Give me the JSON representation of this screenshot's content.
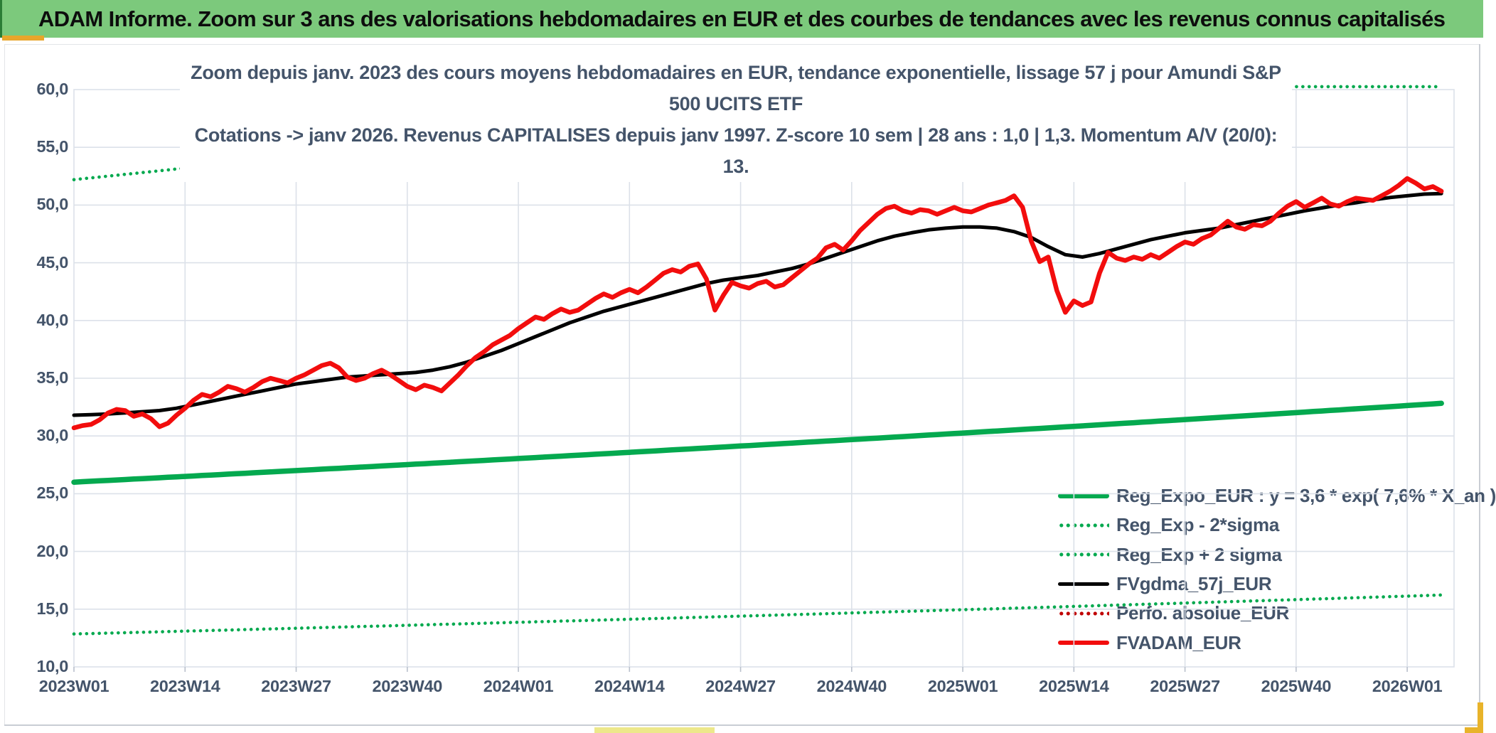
{
  "banner": {
    "title": "ADAM Informe. Zoom sur 3 ans des valorisations hebdomadaires en EUR et des courbes de tendances avec les revenus connus capitalisés",
    "bg_color": "#7CC97C",
    "edge_color": "#2B7D36",
    "underline_color": "#E8A62B"
  },
  "window": {
    "bottom_bar_color": "#EDE88B",
    "corner_accent_color": "#E8B32A",
    "border_color": "#C9CDD4"
  },
  "chart": {
    "title_line1": "Zoom depuis janv. 2023 des cours moyens hebdomadaires en EUR, tendance exponentielle, lissage 57 j pour Amundi S&P 500 UCITS ETF",
    "title_line2": "Cotations -> janv 2026. Revenus CAPITALISES depuis janv 1997. Z-score 10 sem | 28 ans : 1,0 | 1,3. Momentum A/V (20/0): 13.",
    "text_color": "#44546A",
    "gridline_color": "#DCE1E9",
    "tick_color": "#B9C0CC"
  },
  "chart_data": {
    "type": "line",
    "x_unit": "ISO week",
    "x_tick_labels": [
      "2023W01",
      "2023W14",
      "2023W27",
      "2023W40",
      "2024W01",
      "2024W14",
      "2024W27",
      "2024W40",
      "2025W01",
      "2025W14",
      "2025W27",
      "2025W40",
      "2026W01"
    ],
    "x_weeks_total": 160,
    "ylim": [
      10,
      60
    ],
    "y_tick_step": 5,
    "y_tick_labels": [
      "10,0",
      "15,0",
      "20,0",
      "25,0",
      "30,0",
      "35,0",
      "40,0",
      "45,0",
      "50,0",
      "55,0",
      "60,0"
    ],
    "grid": true,
    "legend_position": "inside-bottom-right",
    "series": [
      {
        "name": "Reg_Expo_EUR : y = 3,6 * exp( 7,6% *  X_an )",
        "type": "exponential",
        "style": "solid",
        "color": "#04A94F",
        "width": 7.5,
        "formula": "y = 3,6 * exp( 7,6% * X_an )",
        "start_value": 26.0,
        "weekly_growth": 1.001458
      },
      {
        "name": "Reg_Exp - 2*sigma",
        "type": "exponential",
        "style": "dotted",
        "color": "#04A94F",
        "width": 4.6,
        "start_value": 12.85,
        "weekly_growth": 1.001458
      },
      {
        "name": "Reg_Exp + 2 sigma",
        "type": "exponential",
        "style": "dotted",
        "color": "#04A94F",
        "width": 4.6,
        "start_value": 52.2,
        "weekly_growth": 1.001458,
        "clip_max": 60.25
      },
      {
        "name": "FVgdma_57j_EUR",
        "type": "weekly",
        "style": "solid",
        "color": "#000000",
        "width": 5,
        "week_step": 2,
        "values": [
          31.8,
          31.85,
          31.9,
          32.0,
          32.1,
          32.2,
          32.4,
          32.7,
          33.0,
          33.3,
          33.6,
          33.9,
          34.2,
          34.5,
          34.7,
          34.9,
          35.1,
          35.2,
          35.3,
          35.4,
          35.5,
          35.7,
          36.0,
          36.4,
          36.9,
          37.4,
          38.0,
          38.6,
          39.2,
          39.8,
          40.3,
          40.8,
          41.2,
          41.6,
          42.0,
          42.4,
          42.8,
          43.2,
          43.5,
          43.7,
          43.9,
          44.2,
          44.5,
          44.9,
          45.4,
          45.9,
          46.4,
          46.9,
          47.3,
          47.6,
          47.85,
          48.0,
          48.1,
          48.1,
          48.0,
          47.7,
          47.2,
          46.4,
          45.7,
          45.5,
          45.8,
          46.2,
          46.6,
          47.0,
          47.3,
          47.6,
          47.8,
          48.0,
          48.3,
          48.6,
          48.9,
          49.2,
          49.5,
          49.75,
          50.0,
          50.2,
          50.45,
          50.65,
          50.8,
          50.95,
          51.0
        ]
      },
      {
        "name": "Perfo. absolue_EUR",
        "type": "legend-only",
        "style": "dotted",
        "color": "#C00000",
        "width": 4.6
      },
      {
        "name": "FVADAM_EUR",
        "type": "weekly",
        "style": "solid",
        "color": "#F20D0D",
        "width": 6.5,
        "week_step": 1,
        "values": [
          30.7,
          30.9,
          31.0,
          31.4,
          32.0,
          32.3,
          32.2,
          31.7,
          31.9,
          31.5,
          30.8,
          31.1,
          31.8,
          32.4,
          33.1,
          33.6,
          33.4,
          33.8,
          34.3,
          34.1,
          33.8,
          34.2,
          34.7,
          35.0,
          34.8,
          34.6,
          35.0,
          35.3,
          35.7,
          36.1,
          36.3,
          35.9,
          35.1,
          34.8,
          35.0,
          35.4,
          35.7,
          35.3,
          34.8,
          34.3,
          34.0,
          34.4,
          34.2,
          33.9,
          34.6,
          35.3,
          36.1,
          36.8,
          37.3,
          37.9,
          38.3,
          38.7,
          39.3,
          39.8,
          40.3,
          40.1,
          40.6,
          41.0,
          40.7,
          40.9,
          41.4,
          41.9,
          42.3,
          42.0,
          42.4,
          42.7,
          42.4,
          42.9,
          43.5,
          44.1,
          44.4,
          44.2,
          44.7,
          44.9,
          43.6,
          40.9,
          42.2,
          43.3,
          43.0,
          42.8,
          43.2,
          43.4,
          42.9,
          43.1,
          43.7,
          44.3,
          44.9,
          45.4,
          46.3,
          46.6,
          46.1,
          46.9,
          47.8,
          48.5,
          49.2,
          49.7,
          49.9,
          49.5,
          49.3,
          49.6,
          49.5,
          49.2,
          49.5,
          49.8,
          49.5,
          49.4,
          49.7,
          50.0,
          50.2,
          50.4,
          50.8,
          49.8,
          46.9,
          45.1,
          45.5,
          42.6,
          40.7,
          41.7,
          41.3,
          41.6,
          44.1,
          45.9,
          45.4,
          45.2,
          45.5,
          45.3,
          45.7,
          45.4,
          45.9,
          46.4,
          46.8,
          46.6,
          47.1,
          47.4,
          48.0,
          48.6,
          48.1,
          47.9,
          48.3,
          48.2,
          48.6,
          49.3,
          49.9,
          50.3,
          49.8,
          50.2,
          50.6,
          50.1,
          49.9,
          50.3,
          50.6,
          50.5,
          50.4,
          50.8,
          51.2,
          51.7,
          52.3,
          51.9,
          51.4,
          51.6,
          51.2
        ]
      }
    ]
  }
}
